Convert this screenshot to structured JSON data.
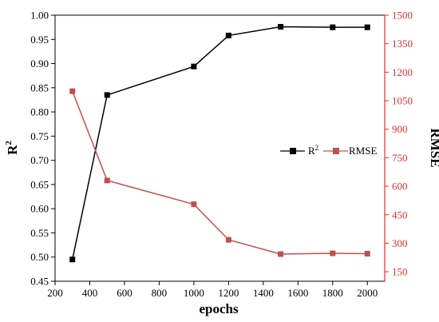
{
  "chart_data": {
    "type": "line",
    "x_label": "epochs",
    "y_left_label": "R",
    "y_left_label_sup": "2",
    "y_right_label": "RMSE",
    "x_range": [
      200,
      2100
    ],
    "x_ticks": [
      200,
      400,
      600,
      800,
      1000,
      1200,
      1400,
      1600,
      1800,
      2000
    ],
    "y_left_range": [
      0.45,
      1.0
    ],
    "y_left_ticks": [
      "0.45",
      "0.50",
      "0.55",
      "0.60",
      "0.65",
      "0.70",
      "0.75",
      "0.80",
      "0.85",
      "0.90",
      "0.95",
      "1.00"
    ],
    "y_right_range": [
      100,
      1500
    ],
    "y_right_ticks": [
      150,
      300,
      450,
      600,
      750,
      900,
      1050,
      1200,
      1350,
      1500
    ],
    "legend_position": "right-middle",
    "grid": false,
    "series": [
      {
        "name": "R",
        "name_sup": "2",
        "axis": "left",
        "color": "#000000",
        "marker": "square",
        "x": [
          300,
          500,
          1000,
          1200,
          1500,
          1800,
          2000
        ],
        "y": [
          0.495,
          0.835,
          0.894,
          0.958,
          0.976,
          0.975,
          0.975
        ]
      },
      {
        "name": "RMSE",
        "axis": "right",
        "color": "#c0504d",
        "marker": "square",
        "x": [
          300,
          500,
          1000,
          1200,
          1500,
          1800,
          2000
        ],
        "y": [
          1100,
          630,
          505,
          318,
          243,
          247,
          245
        ]
      }
    ],
    "colors": {
      "axis_left": "#000000",
      "axis_right": "#e03030"
    }
  }
}
